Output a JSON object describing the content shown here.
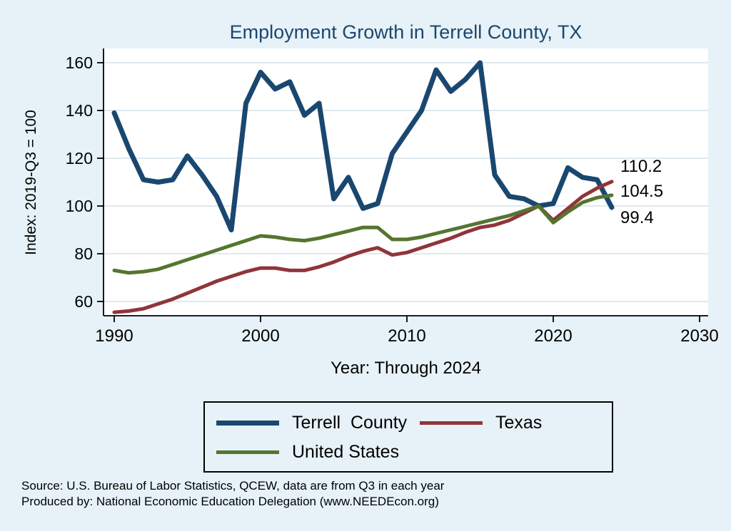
{
  "chart_data": {
    "type": "line",
    "title": "Employment Growth in Terrell County, TX",
    "xlabel": "Year: Through 2024",
    "ylabel": "Index: 2019-Q3 = 100",
    "grid": true,
    "legend_position": "bottom",
    "xlim": [
      1989.3,
      2030.6
    ],
    "ylim": [
      54,
      166
    ],
    "xticks": [
      1990,
      2000,
      2010,
      2020,
      2030
    ],
    "yticks": [
      60,
      80,
      100,
      120,
      140,
      160
    ],
    "x": [
      1990,
      1991,
      1992,
      1993,
      1994,
      1995,
      1996,
      1997,
      1998,
      1999,
      2000,
      2001,
      2002,
      2003,
      2004,
      2005,
      2006,
      2007,
      2008,
      2009,
      2010,
      2011,
      2012,
      2013,
      2014,
      2015,
      2016,
      2017,
      2018,
      2019,
      2020,
      2021,
      2022,
      2023,
      2024
    ],
    "series": [
      {
        "name": "Terrell  County",
        "color": "#1a476f",
        "width": 7,
        "values": [
          139,
          124,
          111,
          110,
          111,
          121,
          113,
          104,
          90,
          143,
          156,
          149,
          152,
          138,
          143,
          103,
          112,
          99,
          101,
          122,
          131,
          140,
          157,
          148,
          153,
          160,
          113,
          104,
          103,
          100,
          101,
          116,
          112,
          111,
          99.4
        ]
      },
      {
        "name": "Texas",
        "color": "#90353b",
        "width": 5,
        "values": [
          55.5,
          56,
          57,
          59,
          61,
          63.5,
          66,
          68.5,
          70.5,
          72.5,
          74,
          74,
          73,
          73,
          74.5,
          76.5,
          79,
          81,
          82.5,
          79.5,
          80.5,
          82.5,
          84.5,
          86.5,
          89,
          91,
          92,
          94,
          97,
          100,
          94,
          99,
          104,
          107.5,
          110.2
        ]
      },
      {
        "name": "United States",
        "color": "#55752f",
        "width": 5,
        "values": [
          73,
          72,
          72.5,
          73.5,
          75.5,
          77.5,
          79.5,
          81.5,
          83.5,
          85.5,
          87.5,
          87,
          86,
          85.5,
          86.5,
          88,
          89.5,
          91,
          91,
          86,
          86,
          87,
          88.5,
          90,
          91.5,
          93,
          94.5,
          96,
          98,
          100,
          93,
          97.5,
          101.5,
          103.5,
          104.5
        ]
      }
    ],
    "end_labels": [
      {
        "text": "110.2",
        "value": 110.2
      },
      {
        "text": "104.5",
        "value": 104.5
      },
      {
        "text": "99.4",
        "value": 99.4
      }
    ]
  },
  "notes": {
    "source": "Source: U.S. Bureau of Labor Statistics, QCEW, data are from Q3 in each year",
    "produced_by": "Produced by: National Economic Education Delegation (www.NEEDEcon.org)"
  }
}
